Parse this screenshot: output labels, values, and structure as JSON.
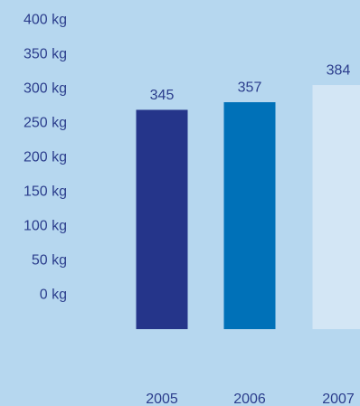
{
  "chart_data": {
    "type": "bar",
    "categories": [
      "2005",
      "2006",
      "2007"
    ],
    "values": [
      345,
      357,
      384
    ],
    "value_labels": [
      "345",
      "357",
      "384"
    ],
    "ylim": [
      0,
      400
    ],
    "y_ticks": [
      {
        "value": 400,
        "label": "400 kg"
      },
      {
        "value": 350,
        "label": "350 kg"
      },
      {
        "value": 300,
        "label": "300 kg"
      },
      {
        "value": 250,
        "label": "250 kg"
      },
      {
        "value": 200,
        "label": "200 kg"
      },
      {
        "value": 150,
        "label": "150 kg"
      },
      {
        "value": 100,
        "label": "100 kg"
      },
      {
        "value": 50,
        "label": "50 kg"
      },
      {
        "value": 0,
        "label": "0 kg"
      }
    ],
    "bar_colors": [
      "#25358a",
      "#0071b8",
      "#d3e6f5"
    ],
    "background_color": "#b6d7ef",
    "text_color": "#2b3d8c",
    "grid": false,
    "legend": "none"
  }
}
